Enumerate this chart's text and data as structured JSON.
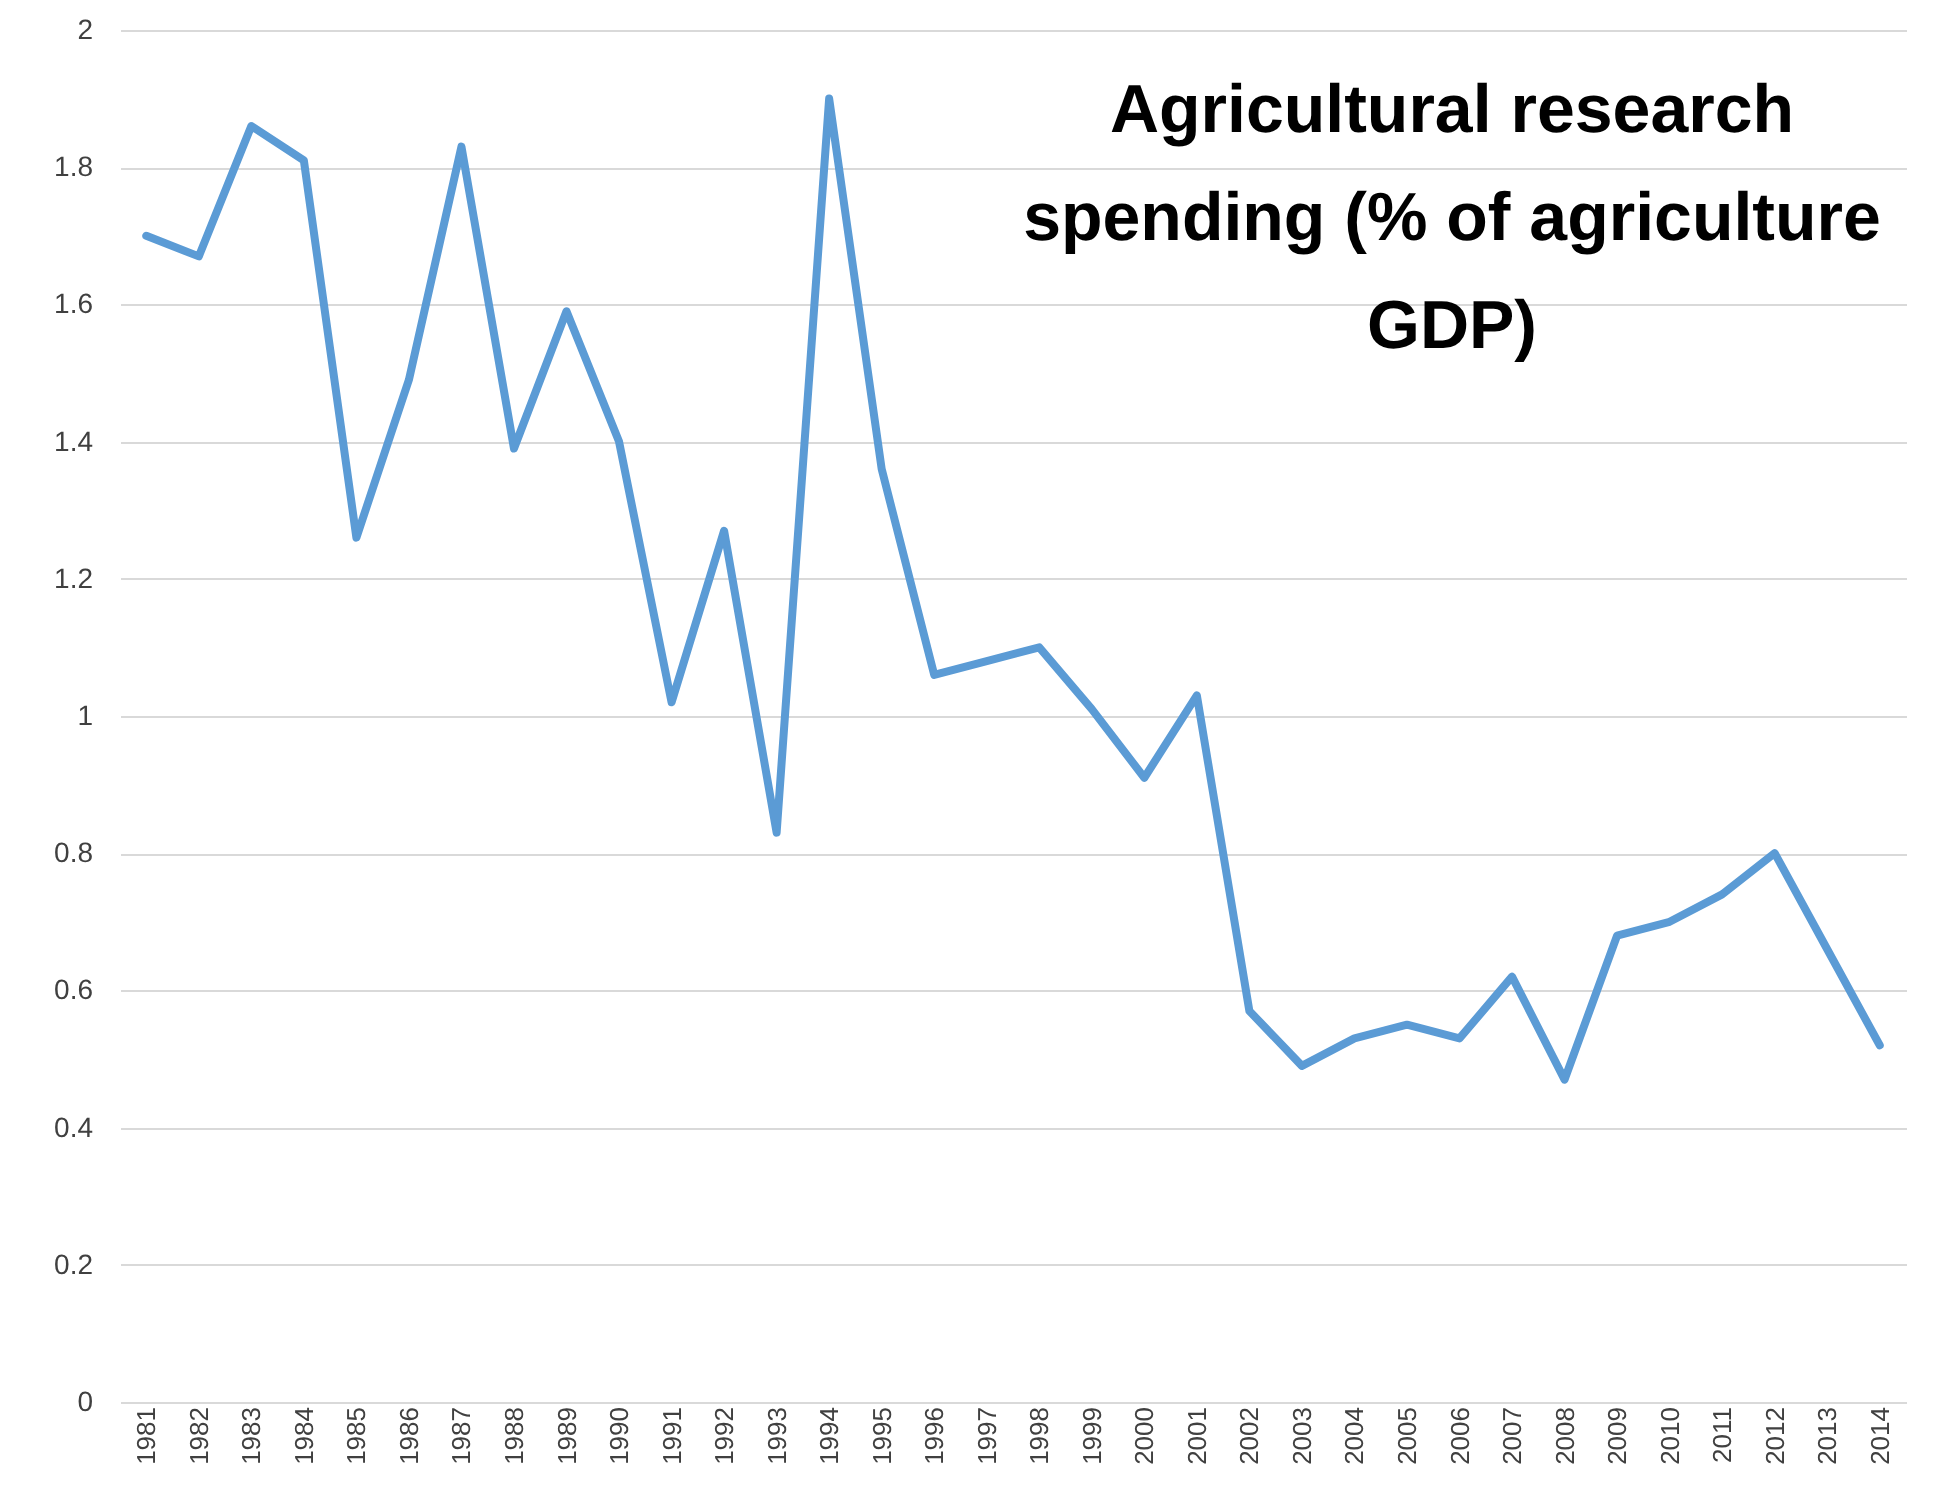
{
  "chart_data": {
    "type": "line",
    "title": "Agricultural research spending (% of agriculture GDP)",
    "categories": [
      "1981",
      "1982",
      "1983",
      "1984",
      "1985",
      "1986",
      "1987",
      "1988",
      "1989",
      "1990",
      "1991",
      "1992",
      "1993",
      "1994",
      "1995",
      "1996",
      "1997",
      "1998",
      "1999",
      "2000",
      "2001",
      "2002",
      "2003",
      "2004",
      "2005",
      "2006",
      "2007",
      "2008",
      "2009",
      "2010",
      "2011",
      "2012",
      "2013",
      "2014"
    ],
    "series": [
      {
        "color": "#5b9bd5",
        "values": [
          1.7,
          1.67,
          1.86,
          1.81,
          1.26,
          1.49,
          1.83,
          1.39,
          1.59,
          1.4,
          1.02,
          1.27,
          0.83,
          1.9,
          1.36,
          1.06,
          1.08,
          1.1,
          1.01,
          0.91,
          1.03,
          0.57,
          0.49,
          0.53,
          0.55,
          0.53,
          0.62,
          0.47,
          0.68,
          0.7,
          0.74,
          0.8,
          0.66,
          0.52
        ]
      }
    ],
    "ylim": [
      0,
      2
    ],
    "yticks": [
      0,
      0.2,
      0.4,
      0.6,
      0.8,
      1,
      1.2,
      1.4,
      1.6,
      1.8,
      2
    ],
    "grid": "y",
    "legend": false,
    "marker": "none",
    "line_style": "solid"
  }
}
